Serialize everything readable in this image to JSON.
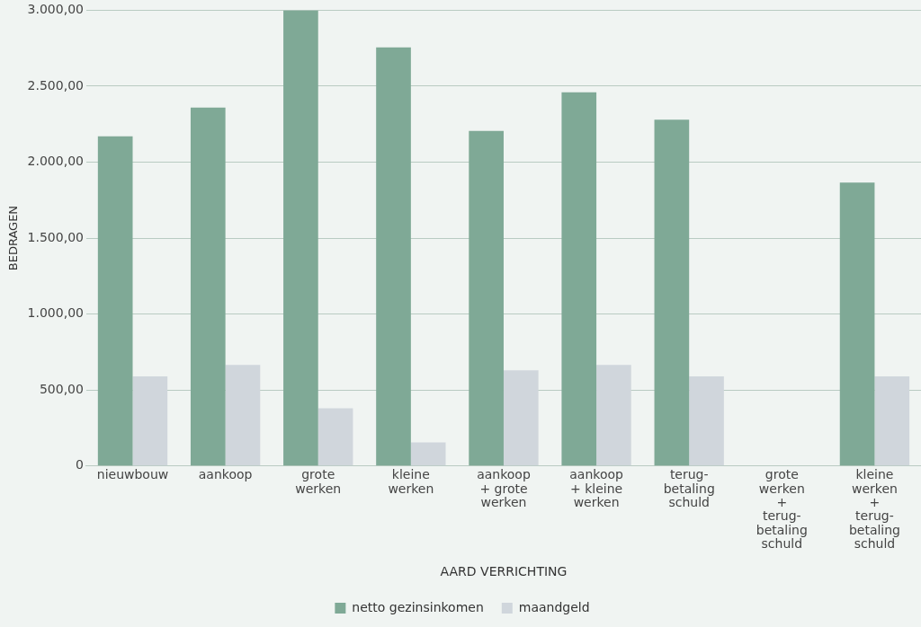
{
  "chart_data": {
    "type": "bar",
    "xlabel": "AARD VERRICHTING",
    "ylabel": "BEDRAGEN",
    "categories": [
      "nieuwbouw",
      "aankoop",
      "grote\nwerken",
      "kleine\nwerken",
      "aankoop\n+ grote\nwerken",
      "aankoop\n+ kleine\nwerken",
      "terug-\nbetaling\nschuld",
      "grote\nwerken\n+\nterug-\nbetaling\nschuld",
      "kleine\nwerken\n+\nterug-\nbetaling\nschuld"
    ],
    "series": [
      {
        "name": "netto gezinsinkomen",
        "color": "#7fa996",
        "values": [
          2170,
          2360,
          3000,
          2755,
          2205,
          2460,
          2280,
          null,
          1865
        ]
      },
      {
        "name": "maandgeld",
        "color": "#d0d6dc",
        "values": [
          590,
          665,
          380,
          155,
          630,
          665,
          590,
          null,
          590
        ]
      }
    ],
    "ylim": [
      0,
      3000
    ],
    "yticks": [
      {
        "value": 0,
        "label": "0"
      },
      {
        "value": 500,
        "label": "500,00"
      },
      {
        "value": 1000,
        "label": "1.000,00"
      },
      {
        "value": 1500,
        "label": "1.500,00"
      },
      {
        "value": 2000,
        "label": "2.000,00"
      },
      {
        "value": 2500,
        "label": "2.500,00"
      },
      {
        "value": 3000,
        "label": "3.000,00"
      }
    ],
    "grid": "y",
    "legend": "bottom"
  }
}
